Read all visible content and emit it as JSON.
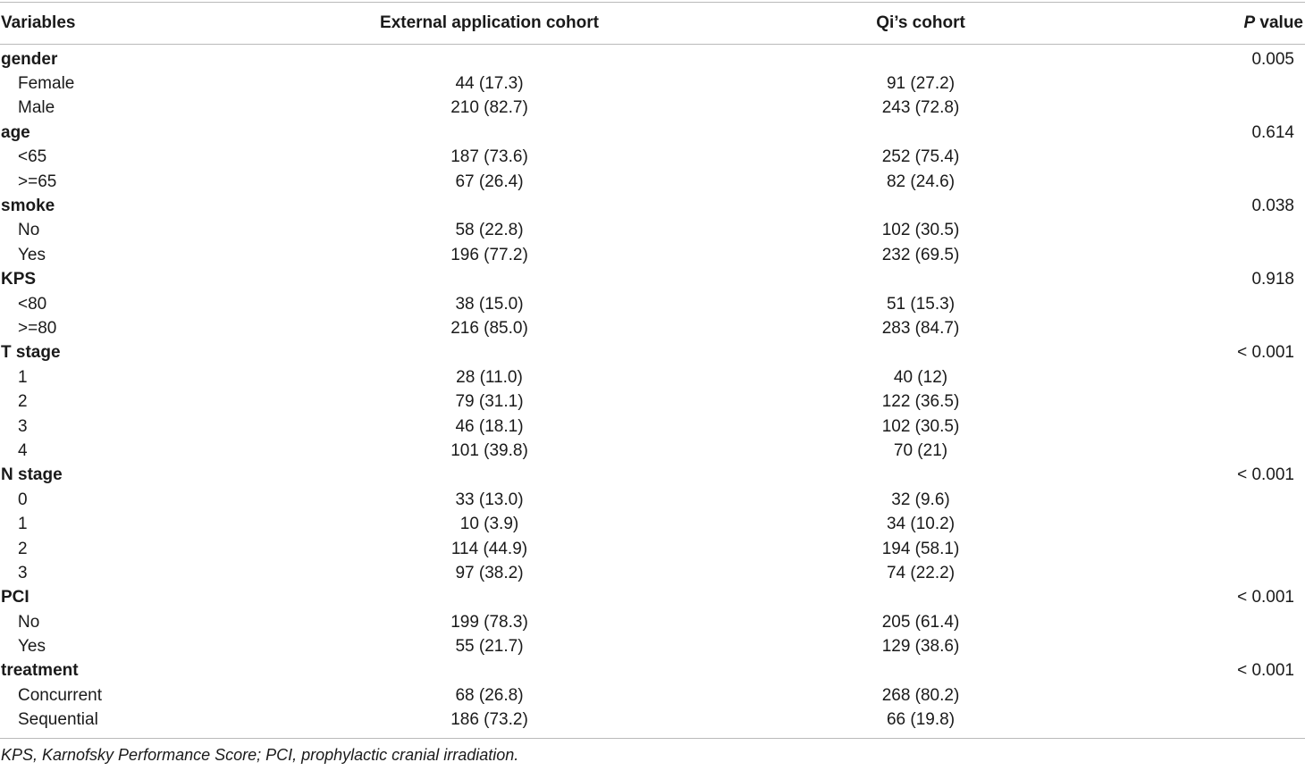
{
  "header": {
    "variables": "Variables",
    "external": "External application cohort",
    "qi": "Qi’s cohort",
    "p_italic": "P",
    "p_rest": " value"
  },
  "rows": [
    {
      "type": "group",
      "label": "gender",
      "p": "0.005"
    },
    {
      "type": "sub",
      "label": "Female",
      "ext": "44 (17.3)",
      "qi": "91 (27.2)"
    },
    {
      "type": "sub",
      "label": "Male",
      "ext": "210 (82.7)",
      "qi": "243 (72.8)"
    },
    {
      "type": "group",
      "label": "age",
      "p": "0.614"
    },
    {
      "type": "sub",
      "label": "<65",
      "ext": "187 (73.6)",
      "qi": "252 (75.4)"
    },
    {
      "type": "sub",
      "label": ">=65",
      "ext": "67 (26.4)",
      "qi": "82 (24.6)"
    },
    {
      "type": "group",
      "label": "smoke",
      "p": "0.038"
    },
    {
      "type": "sub",
      "label": "No",
      "ext": "58 (22.8)",
      "qi": "102 (30.5)"
    },
    {
      "type": "sub",
      "label": "Yes",
      "ext": "196 (77.2)",
      "qi": "232 (69.5)"
    },
    {
      "type": "group",
      "label": "KPS",
      "p": "0.918"
    },
    {
      "type": "sub",
      "label": "<80",
      "ext": "38 (15.0)",
      "qi": "51 (15.3)"
    },
    {
      "type": "sub",
      "label": ">=80",
      "ext": "216 (85.0)",
      "qi": "283 (84.7)"
    },
    {
      "type": "group",
      "label": "T stage",
      "p": "< 0.001"
    },
    {
      "type": "sub",
      "label": "1",
      "ext": "28 (11.0)",
      "qi": "40 (12)"
    },
    {
      "type": "sub",
      "label": "2",
      "ext": "79 (31.1)",
      "qi": "122 (36.5)"
    },
    {
      "type": "sub",
      "label": "3",
      "ext": "46 (18.1)",
      "qi": "102 (30.5)"
    },
    {
      "type": "sub",
      "label": "4",
      "ext": "101 (39.8)",
      "qi": "70 (21)"
    },
    {
      "type": "group",
      "label": "N stage",
      "p": "< 0.001"
    },
    {
      "type": "sub",
      "label": "0",
      "ext": "33 (13.0)",
      "qi": "32 (9.6)"
    },
    {
      "type": "sub",
      "label": "1",
      "ext": "10 (3.9)",
      "qi": "34 (10.2)"
    },
    {
      "type": "sub",
      "label": "2",
      "ext": "114 (44.9)",
      "qi": "194 (58.1)"
    },
    {
      "type": "sub",
      "label": "3",
      "ext": "97 (38.2)",
      "qi": "74 (22.2)"
    },
    {
      "type": "group",
      "label": "PCI",
      "p": "< 0.001"
    },
    {
      "type": "sub",
      "label": "No",
      "ext": "199 (78.3)",
      "qi": "205 (61.4)"
    },
    {
      "type": "sub",
      "label": "Yes",
      "ext": "55 (21.7)",
      "qi": "129 (38.6)"
    },
    {
      "type": "group",
      "label": "treatment",
      "p": "< 0.001"
    },
    {
      "type": "sub",
      "label": "Concurrent",
      "ext": "68 (26.8)",
      "qi": "268 (80.2)"
    },
    {
      "type": "sub",
      "label": "Sequential",
      "ext": "186 (73.2)",
      "qi": "66 (19.8)"
    }
  ],
  "footnote": "KPS, Karnofsky Performance Score; PCI, prophylactic cranial irradiation."
}
